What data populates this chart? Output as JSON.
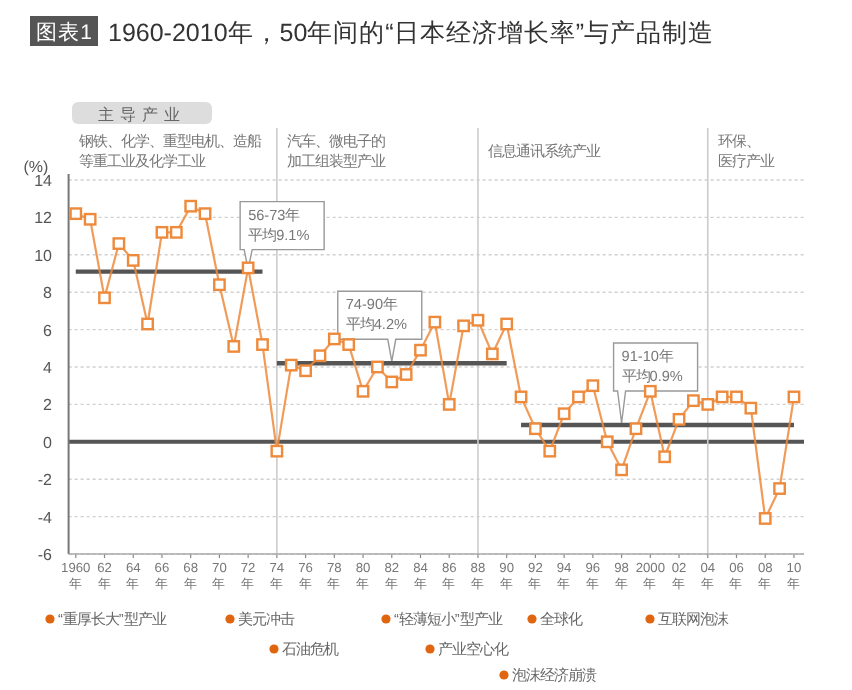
{
  "chart_data": {
    "type": "line",
    "title": "1960-2010年，50年间的“日本经济增长率”与产品制造",
    "ylabel": "(%)",
    "categories": [
      "1960年",
      null,
      "62年",
      null,
      "64年",
      null,
      "66年",
      null,
      "68年",
      null,
      "70年",
      null,
      "72年",
      null,
      "74年",
      null,
      "76年",
      null,
      "78年",
      null,
      "80年",
      null,
      "82年",
      null,
      "84年",
      null,
      "86年",
      null,
      "88年",
      null,
      "90年",
      null,
      "92年",
      null,
      "94年",
      null,
      "96年",
      null,
      "98年",
      null,
      "2000年",
      null,
      "02年",
      null,
      "04年",
      null,
      "06年",
      null,
      "08年",
      null,
      "10年"
    ],
    "ylim": [
      -6,
      14
    ],
    "yticks": [
      -6,
      -4,
      -2,
      0,
      2,
      4,
      6,
      8,
      10,
      12,
      14
    ],
    "grid": "y",
    "series": [
      {
        "color": "#ee8a3c",
        "marker": "square",
        "values": [
          12.2,
          11.9,
          7.7,
          10.6,
          9.7,
          6.3,
          11.2,
          11.2,
          12.6,
          12.2,
          8.4,
          5.1,
          9.3,
          5.2,
          -0.5,
          4.1,
          3.8,
          4.6,
          5.5,
          5.2,
          2.7,
          4.0,
          3.2,
          3.6,
          4.9,
          6.4,
          2.0,
          6.2,
          6.5,
          4.7,
          6.3,
          2.4,
          0.7,
          -0.5,
          1.5,
          2.4,
          3.0,
          0.0,
          -1.5,
          0.7,
          2.7,
          -0.8,
          1.2,
          2.2,
          2.0,
          2.4,
          2.4,
          1.8,
          -4.1,
          -2.5,
          2.4
        ]
      },
      {
        "color": "#555555",
        "marker": "none",
        "values": [
          9.1,
          9.1,
          9.1,
          9.1,
          9.1,
          9.1,
          9.1,
          9.1,
          9.1,
          9.1,
          9.1,
          9.1,
          9.1,
          9.1,
          null,
          null,
          null,
          null,
          null,
          null,
          null,
          null,
          null,
          null,
          null,
          null,
          null,
          null,
          null,
          null,
          null,
          null,
          null,
          null,
          null,
          null,
          null,
          null,
          null,
          null,
          null,
          null,
          null,
          null,
          null,
          null,
          null,
          null,
          null,
          null,
          null
        ]
      },
      {
        "color": "#555555",
        "marker": "none",
        "values": [
          null,
          null,
          null,
          null,
          null,
          null,
          null,
          null,
          null,
          null,
          null,
          null,
          null,
          null,
          4.2,
          4.2,
          4.2,
          4.2,
          4.2,
          4.2,
          4.2,
          4.2,
          4.2,
          4.2,
          4.2,
          4.2,
          4.2,
          4.2,
          4.2,
          4.2,
          4.2,
          null,
          null,
          null,
          null,
          null,
          null,
          null,
          null,
          null,
          null,
          null,
          null,
          null,
          null,
          null,
          null,
          null,
          null,
          null,
          null
        ]
      },
      {
        "color": "#555555",
        "marker": "none",
        "values": [
          null,
          null,
          null,
          null,
          null,
          null,
          null,
          null,
          null,
          null,
          null,
          null,
          null,
          null,
          null,
          null,
          null,
          null,
          null,
          null,
          null,
          null,
          null,
          null,
          null,
          null,
          null,
          null,
          null,
          null,
          null,
          0.9,
          0.9,
          0.9,
          0.9,
          0.9,
          0.9,
          0.9,
          0.9,
          0.9,
          0.9,
          0.9,
          0.9,
          0.9,
          0.9,
          0.9,
          0.9,
          0.9,
          0.9,
          0.9,
          0.9
        ]
      }
    ],
    "ref_lines": [
      {
        "axis": "y",
        "value": 0,
        "color": "#555555"
      },
      {
        "axis": "x",
        "value": "74年",
        "color": "#cccccc"
      },
      {
        "axis": "x",
        "value": "88年",
        "color": "#cccccc"
      },
      {
        "axis": "x",
        "value": "04年",
        "color": "#cccccc"
      }
    ],
    "annotations": [
      "图表1",
      "主导产业",
      "钢铁、化学、重型电机、造船",
      "等重工业及化学工业",
      "汽车、微电子的",
      "加工组装型产业",
      "信息通讯系统产业",
      "环保、",
      "医疗产业",
      "“重厚长大”型产业",
      "美元冲击",
      "“轻薄短小”型产业",
      "全球化",
      "互联网泡沫",
      "石油危机",
      "产业空心化",
      "泡沫经济崩溃",
      {
        "text": "56-73年平均9.1%",
        "x": "72年",
        "y": 9.1
      },
      {
        "text": "74-90年平均4.2%",
        "x": "82年",
        "y": 4.2
      },
      {
        "text": "91-10年平均0.9%",
        "x": "98年",
        "y": 0.9
      }
    ]
  }
}
